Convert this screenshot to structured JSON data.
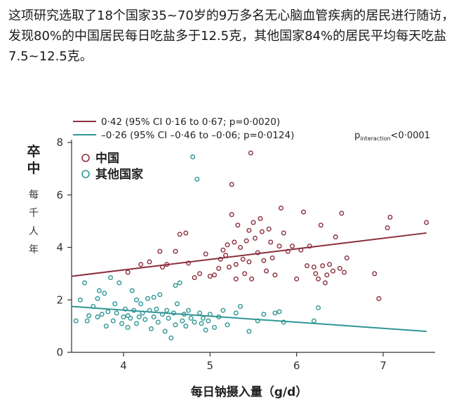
{
  "article": {
    "paragraph_lines": [
      "这项研究选取了18个国家35~70岁的9万多名无心脑血管疾病的居民进行随访，",
      "发现80%的中国居民每日吃盐多于12.5克，其他国家84%的居民平均每天吃盐",
      "7.5~12.5克。"
    ]
  },
  "chart_data": {
    "type": "scatter",
    "title": "",
    "xlabel": "每日钠摄入量（g/d）",
    "ylabel": "卒中",
    "ylabel_sub": [
      "每",
      "千",
      "人",
      "年"
    ],
    "xlim": [
      3.4,
      7.6
    ],
    "ylim": [
      0,
      8
    ],
    "xticks": [
      4,
      5,
      6,
      7
    ],
    "yticks": [
      0,
      2,
      4,
      6,
      8
    ],
    "xtick_labels": [
      "4",
      "5",
      "6",
      "7"
    ],
    "ytick_labels": [
      "0",
      "2",
      "4",
      "6",
      "8"
    ],
    "grid": false,
    "legend_placement": "top-left",
    "p_interaction": {
      "text_p": "p",
      "text_sub": "interaction",
      "text_rest": "<0·0001"
    },
    "fit_lines": [
      {
        "label": "0·42 (95% CI 0·16 to 0·67; p=0·0020)",
        "color": "#8b2f3c",
        "x": [
          3.4,
          7.5
        ],
        "y": [
          2.9,
          4.55
        ]
      },
      {
        "label": "–0·26 (95% CI –0·46 to –0·06; p=0·0124)",
        "color": "#2f9696",
        "x": [
          3.4,
          7.5
        ],
        "y": [
          1.75,
          0.8
        ]
      }
    ],
    "series": [
      {
        "name": "中国",
        "color": "#8b2f3c",
        "points": [
          [
            4.05,
            3.05
          ],
          [
            4.2,
            3.35
          ],
          [
            4.3,
            3.45
          ],
          [
            4.42,
            3.85
          ],
          [
            4.45,
            3.25
          ],
          [
            4.5,
            3.35
          ],
          [
            4.6,
            3.85
          ],
          [
            4.65,
            4.5
          ],
          [
            4.72,
            4.55
          ],
          [
            4.75,
            3.4
          ],
          [
            4.82,
            2.85
          ],
          [
            4.88,
            3.0
          ],
          [
            4.95,
            3.75
          ],
          [
            5.05,
            2.95
          ],
          [
            5.1,
            3.2
          ],
          [
            5.12,
            3.55
          ],
          [
            5.15,
            3.9
          ],
          [
            5.18,
            3.7
          ],
          [
            5.2,
            4.1
          ],
          [
            5.22,
            3.25
          ],
          [
            5.25,
            6.4
          ],
          [
            5.25,
            5.25
          ],
          [
            5.28,
            4.2
          ],
          [
            5.3,
            3.35
          ],
          [
            5.3,
            2.8
          ],
          [
            5.32,
            4.85
          ],
          [
            5.35,
            4.0
          ],
          [
            5.38,
            3.55
          ],
          [
            5.4,
            3.0
          ],
          [
            5.42,
            4.25
          ],
          [
            5.45,
            4.65
          ],
          [
            5.45,
            3.45
          ],
          [
            5.48,
            2.8
          ],
          [
            5.5,
            4.95
          ],
          [
            5.52,
            4.35
          ],
          [
            5.55,
            3.8
          ],
          [
            5.58,
            5.1
          ],
          [
            5.6,
            4.6
          ],
          [
            5.62,
            3.5
          ],
          [
            5.65,
            3.1
          ],
          [
            5.68,
            4.7
          ],
          [
            5.7,
            4.2
          ],
          [
            5.72,
            3.6
          ],
          [
            5.75,
            2.95
          ],
          [
            5.8,
            4.05
          ],
          [
            5.82,
            5.5
          ],
          [
            5.85,
            4.55
          ],
          [
            5.9,
            3.85
          ],
          [
            5.95,
            4.05
          ],
          [
            6.0,
            2.8
          ],
          [
            6.05,
            3.9
          ],
          [
            6.08,
            5.35
          ],
          [
            6.12,
            3.3
          ],
          [
            6.15,
            4.05
          ],
          [
            6.2,
            3.25
          ],
          [
            6.22,
            3.0
          ],
          [
            6.25,
            2.8
          ],
          [
            6.28,
            4.85
          ],
          [
            6.3,
            3.3
          ],
          [
            6.33,
            2.65
          ],
          [
            6.35,
            2.95
          ],
          [
            6.38,
            3.35
          ],
          [
            6.42,
            3.1
          ],
          [
            6.45,
            4.4
          ],
          [
            6.5,
            3.2
          ],
          [
            6.52,
            5.3
          ],
          [
            6.55,
            3.05
          ],
          [
            6.58,
            3.6
          ],
          [
            6.9,
            3.0
          ],
          [
            6.95,
            2.05
          ],
          [
            7.05,
            4.75
          ],
          [
            7.08,
            5.15
          ],
          [
            7.5,
            4.95
          ],
          [
            5.47,
            7.6
          ],
          [
            5.0,
            2.9
          ]
        ]
      },
      {
        "name": "其他国家",
        "color": "#2f9696",
        "points": [
          [
            3.45,
            1.2
          ],
          [
            3.5,
            2.0
          ],
          [
            3.55,
            2.65
          ],
          [
            3.58,
            1.2
          ],
          [
            3.6,
            1.4
          ],
          [
            3.65,
            1.75
          ],
          [
            3.7,
            1.35
          ],
          [
            3.72,
            2.35
          ],
          [
            3.75,
            1.45
          ],
          [
            3.78,
            2.25
          ],
          [
            3.8,
            1.0
          ],
          [
            3.82,
            1.55
          ],
          [
            3.85,
            2.85
          ],
          [
            3.88,
            1.2
          ],
          [
            3.9,
            1.85
          ],
          [
            3.92,
            1.5
          ],
          [
            3.95,
            2.65
          ],
          [
            3.98,
            1.1
          ],
          [
            4.0,
            1.35
          ],
          [
            4.02,
            1.65
          ],
          [
            4.05,
            1.4
          ],
          [
            4.05,
            0.95
          ],
          [
            4.08,
            1.3
          ],
          [
            4.1,
            2.35
          ],
          [
            4.12,
            1.6
          ],
          [
            4.15,
            1.1
          ],
          [
            4.18,
            1.35
          ],
          [
            4.2,
            1.85
          ],
          [
            4.22,
            1.5
          ],
          [
            4.25,
            1.25
          ],
          [
            4.28,
            2.05
          ],
          [
            4.3,
            1.6
          ],
          [
            4.32,
            0.9
          ],
          [
            4.35,
            1.35
          ],
          [
            4.38,
            1.65
          ],
          [
            4.4,
            1.15
          ],
          [
            4.42,
            2.2
          ],
          [
            4.45,
            1.45
          ],
          [
            4.48,
            0.8
          ],
          [
            4.5,
            1.6
          ],
          [
            4.52,
            1.3
          ],
          [
            4.55,
            0.55
          ],
          [
            4.58,
            1.5
          ],
          [
            4.6,
            1.05
          ],
          [
            4.62,
            1.85
          ],
          [
            4.65,
            2.65
          ],
          [
            4.68,
            1.2
          ],
          [
            4.7,
            1.45
          ],
          [
            4.72,
            1.0
          ],
          [
            4.75,
            1.6
          ],
          [
            4.78,
            1.3
          ],
          [
            4.8,
            7.45
          ],
          [
            4.82,
            1.15
          ],
          [
            4.85,
            6.6
          ],
          [
            4.88,
            1.5
          ],
          [
            4.9,
            1.1
          ],
          [
            4.92,
            1.3
          ],
          [
            4.95,
            0.85
          ],
          [
            4.98,
            1.2
          ],
          [
            5.0,
            1.45
          ],
          [
            5.05,
            0.95
          ],
          [
            5.1,
            1.35
          ],
          [
            5.15,
            1.6
          ],
          [
            5.2,
            1.05
          ],
          [
            5.3,
            1.5
          ],
          [
            5.35,
            1.75
          ],
          [
            5.45,
            0.8
          ],
          [
            5.55,
            1.2
          ],
          [
            5.62,
            1.45
          ],
          [
            5.75,
            1.5
          ],
          [
            5.8,
            1.55
          ],
          [
            5.85,
            1.15
          ],
          [
            6.2,
            1.2
          ],
          [
            6.25,
            1.7
          ],
          [
            3.7,
            2.05
          ],
          [
            4.15,
            2.0
          ],
          [
            4.35,
            2.1
          ],
          [
            4.6,
            2.55
          ]
        ]
      }
    ]
  }
}
